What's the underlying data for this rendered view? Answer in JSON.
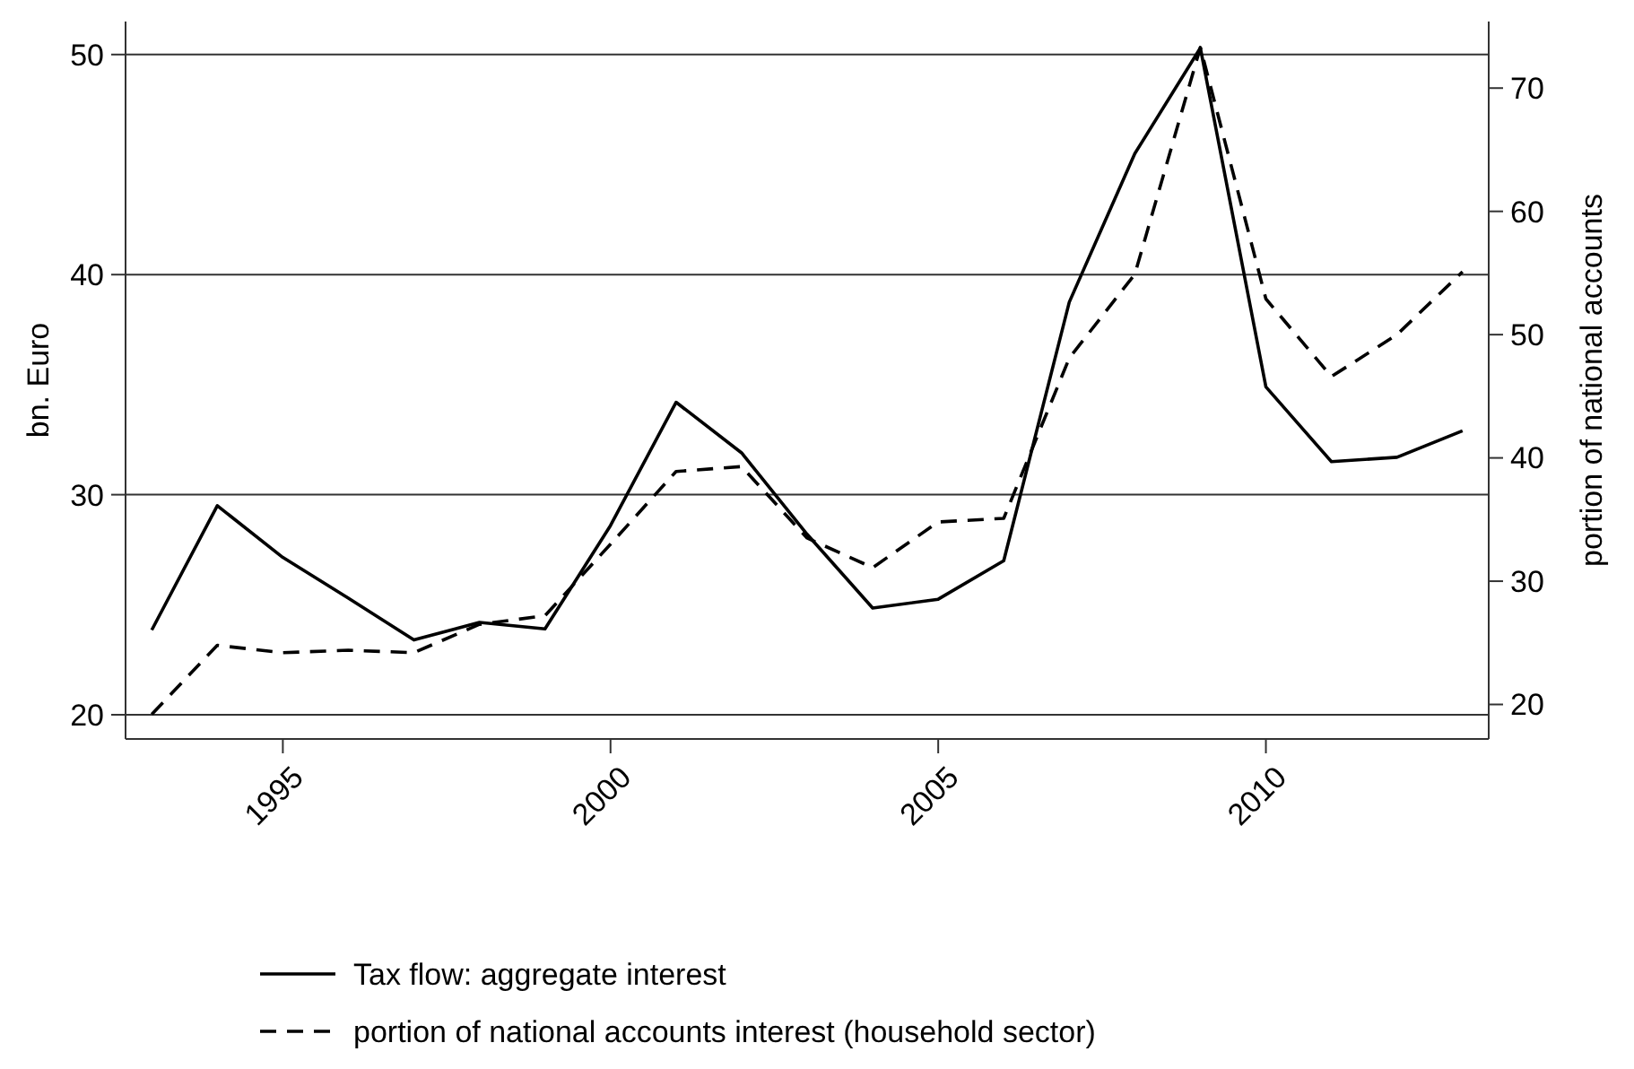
{
  "chart_data": {
    "type": "line",
    "ylabel": "bn. Euro",
    "y2label": "portion of national accounts",
    "x": [
      1993,
      1994,
      1995,
      1996,
      1997,
      1998,
      1999,
      2000,
      2001,
      2002,
      2003,
      2004,
      2005,
      2006,
      2007,
      2008,
      2009,
      2010,
      2011,
      2012,
      2013
    ],
    "xlim": [
      1992.6,
      2013.4
    ],
    "xticks": [
      1995,
      2000,
      2005,
      2010
    ],
    "ylim": [
      18.9,
      51.5
    ],
    "yticks": [
      20,
      30,
      40,
      50
    ],
    "y2lim": [
      17.2,
      75.4
    ],
    "y2ticks": [
      20,
      30,
      40,
      50,
      60,
      70
    ],
    "grid": "y",
    "legend": "bottom",
    "series": [
      {
        "name": "Tax flow: aggregate interest",
        "color": "#000000",
        "line_style": "solid",
        "values": [
          23.85,
          29.5,
          27.15,
          25.3,
          23.4,
          24.2,
          23.9,
          28.6,
          34.2,
          31.9,
          28.2,
          24.85,
          25.25,
          27.0,
          38.75,
          45.5,
          50.3,
          34.9,
          31.5,
          31.7,
          32.9
        ]
      },
      {
        "name": "portion of national accounts interest (household sector)",
        "color": "#000000",
        "line_style": "dashed",
        "axis": "y2",
        "values": [
          19.2,
          24.8,
          24.2,
          24.4,
          24.2,
          26.5,
          27.2,
          33.0,
          38.9,
          39.3,
          33.5,
          31.1,
          34.8,
          35.1,
          48.1,
          54.9,
          73.3,
          52.9,
          46.6,
          50.0,
          55.1
        ]
      }
    ]
  }
}
